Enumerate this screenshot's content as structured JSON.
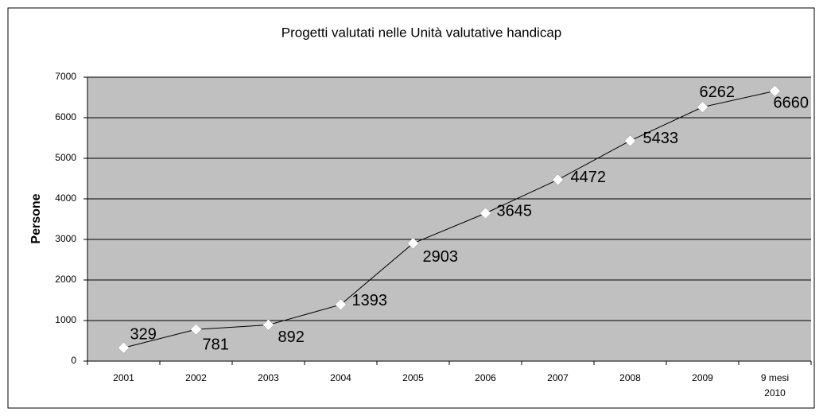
{
  "chart_data": {
    "type": "line",
    "title": "Progetti valutati nelle Unità valutative handicap",
    "y_label": "Persone",
    "categories": [
      "2001",
      "2002",
      "2003",
      "2004",
      "2005",
      "2006",
      "2007",
      "2008",
      "2009",
      "9 mesi 2010"
    ],
    "values": [
      329,
      781,
      892,
      1393,
      2903,
      3645,
      4472,
      5433,
      6262,
      6660
    ],
    "color": "#000000",
    "marker_color": "#ffffff",
    "plot_background": "#c0c0c0",
    "ylim": [
      0,
      7000
    ],
    "yticks": [
      0,
      1000,
      2000,
      3000,
      4000,
      5000,
      6000,
      7000
    ],
    "grid": true
  }
}
